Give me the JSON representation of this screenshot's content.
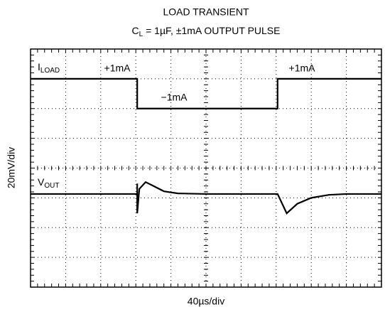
{
  "chart_data": {
    "type": "scope",
    "title": "LOAD TRANSIENT",
    "subtitle": {
      "main": "C",
      "sub": "L",
      "rest": " = 1µF, ±1mA OUTPUT PULSE"
    },
    "y_label": "20mV/div",
    "x_label": "40µs/div",
    "xlim": [
      0,
      10
    ],
    "ylim": [
      0,
      8
    ],
    "grid": true,
    "series": [
      {
        "name": "I",
        "name_sub": "LOAD",
        "color": "#000000",
        "x": [
          0,
          3.04,
          3.04,
          7.04,
          7.04,
          10
        ],
        "values": [
          7,
          7,
          6,
          6,
          7,
          7
        ]
      },
      {
        "name": "V",
        "name_sub": "OUT",
        "color": "#000000",
        "x": [
          0,
          3.04,
          3.04,
          3.04,
          3.1,
          3.28,
          3.5,
          3.8,
          4.2,
          5,
          7.04,
          7.3,
          7.6,
          8.0,
          8.5,
          9,
          10
        ],
        "values": [
          3.13,
          3.13,
          3.48,
          2.48,
          3.3,
          3.53,
          3.4,
          3.22,
          3.15,
          3.13,
          3.13,
          2.48,
          2.8,
          3.0,
          3.1,
          3.13,
          3.13
        ]
      }
    ],
    "annotations": [
      "+1mA",
      "−1mA",
      "+1mA"
    ]
  }
}
